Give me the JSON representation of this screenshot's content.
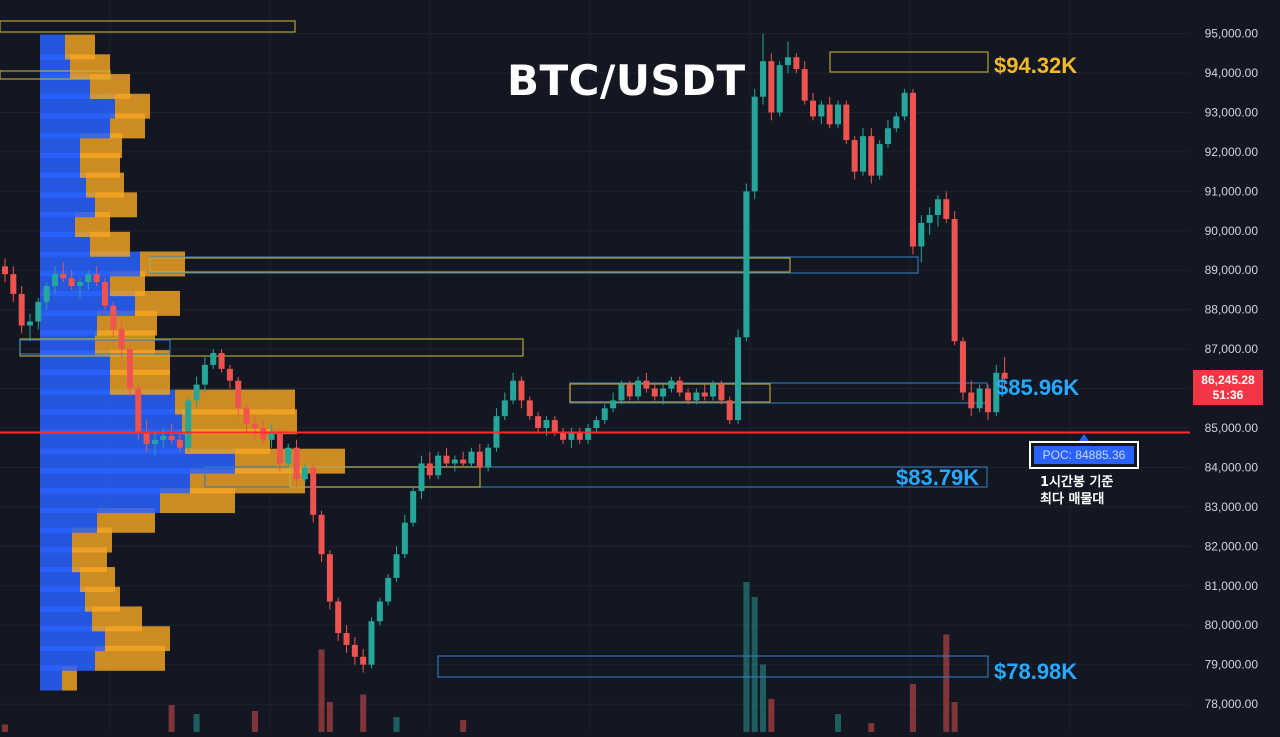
{
  "title": "BTC/USDT",
  "colors": {
    "background": "#131722",
    "grid": "#1e2230",
    "up": "#26a69a",
    "down": "#ef5350",
    "vp_blue": "#2962ff",
    "vp_orange": "#f5a623",
    "poc_line": "#ff2b2b",
    "zone_yellow": "#c9b13a",
    "zone_blue": "#3a7bbf",
    "label_gold": "#f5b82a",
    "label_blue": "#26a9ff"
  },
  "axis": {
    "y_ticks": [
      "95,000.00",
      "94,000.00",
      "93,000.00",
      "92,000.00",
      "91,000.00",
      "90,000.00",
      "89,000.00",
      "88,000.00",
      "87,000.00",
      "86,000.00",
      "85,000.00",
      "84,000.00",
      "83,000.00",
      "82,000.00",
      "81,000.00",
      "80,000.00",
      "79,000.00",
      "78,000.00"
    ]
  },
  "current_price": {
    "value": "86,245.28",
    "countdown": "51:36"
  },
  "poc": {
    "label": "POC: 84885.36",
    "value": 84885.36,
    "note_line1": "1시간봉 기준",
    "note_line2": "최다 매물대"
  },
  "levels": [
    {
      "label": "$94.32K",
      "value": 94320,
      "color": "gold"
    },
    {
      "label": "$85.96K",
      "value": 85960,
      "color": "blue"
    },
    {
      "label": "$83.79K",
      "value": 83790,
      "color": "blue"
    },
    {
      "label": "$78.98K",
      "value": 78980,
      "color": "blue"
    }
  ],
  "chart_data": {
    "type": "candlestick",
    "title": "BTC/USDT",
    "ylim": [
      77500,
      95500
    ],
    "ohlc": [
      [
        89100,
        89300,
        88700,
        88900
      ],
      [
        88900,
        89100,
        88200,
        88400
      ],
      [
        88400,
        88600,
        87400,
        87600
      ],
      [
        87600,
        87900,
        87200,
        87700
      ],
      [
        87700,
        88300,
        87500,
        88200
      ],
      [
        88200,
        88700,
        88000,
        88600
      ],
      [
        88600,
        89100,
        88400,
        88900
      ],
      [
        88900,
        89200,
        88700,
        88800
      ],
      [
        88800,
        89000,
        88500,
        88600
      ],
      [
        88600,
        88800,
        88300,
        88700
      ],
      [
        88700,
        89000,
        88500,
        88900
      ],
      [
        88900,
        89100,
        88600,
        88700
      ],
      [
        88700,
        88800,
        88000,
        88100
      ],
      [
        88100,
        88200,
        87300,
        87500
      ],
      [
        87500,
        87700,
        86800,
        87000
      ],
      [
        87000,
        87100,
        85800,
        86000
      ],
      [
        86000,
        86100,
        84700,
        84900
      ],
      [
        84900,
        85200,
        84400,
        84600
      ],
      [
        84600,
        84900,
        84300,
        84700
      ],
      [
        84700,
        85000,
        84500,
        84800
      ],
      [
        84800,
        85100,
        84600,
        84700
      ],
      [
        84700,
        84900,
        84400,
        84500
      ],
      [
        84500,
        85800,
        84400,
        85700
      ],
      [
        85700,
        86300,
        85500,
        86100
      ],
      [
        86100,
        86800,
        85900,
        86600
      ],
      [
        86600,
        87000,
        86500,
        86900
      ],
      [
        86900,
        87000,
        86400,
        86500
      ],
      [
        86500,
        86600,
        86000,
        86200
      ],
      [
        86200,
        86300,
        85300,
        85500
      ],
      [
        85500,
        85600,
        84900,
        85100
      ],
      [
        85100,
        85300,
        84700,
        85000
      ],
      [
        85000,
        85200,
        84600,
        84700
      ],
      [
        84700,
        85100,
        84500,
        84900
      ],
      [
        84900,
        85000,
        83900,
        84100
      ],
      [
        84100,
        84600,
        84000,
        84500
      ],
      [
        84500,
        84700,
        83500,
        83700
      ],
      [
        83700,
        84100,
        83600,
        84000
      ],
      [
        84000,
        84100,
        82600,
        82800
      ],
      [
        82800,
        82900,
        81600,
        81800
      ],
      [
        81800,
        81900,
        80400,
        80600
      ],
      [
        80600,
        80700,
        79600,
        79800
      ],
      [
        79800,
        80000,
        79300,
        79500
      ],
      [
        79500,
        79700,
        79000,
        79200
      ],
      [
        79200,
        79400,
        78800,
        79000
      ],
      [
        79000,
        80200,
        78900,
        80100
      ],
      [
        80100,
        80700,
        80000,
        80600
      ],
      [
        80600,
        81300,
        80500,
        81200
      ],
      [
        81200,
        82000,
        81100,
        81800
      ],
      [
        81800,
        82800,
        81700,
        82600
      ],
      [
        82600,
        83500,
        82500,
        83400
      ],
      [
        83400,
        84300,
        83200,
        84100
      ],
      [
        84100,
        84400,
        83700,
        83800
      ],
      [
        83800,
        84400,
        83700,
        84300
      ],
      [
        84300,
        84500,
        84000,
        84100
      ],
      [
        84100,
        84300,
        83900,
        84200
      ],
      [
        84200,
        84400,
        84000,
        84100
      ],
      [
        84100,
        84500,
        84000,
        84400
      ],
      [
        84400,
        84600,
        83900,
        84000
      ],
      [
        84000,
        84600,
        83900,
        84500
      ],
      [
        84500,
        85500,
        84400,
        85300
      ],
      [
        85300,
        85900,
        85200,
        85700
      ],
      [
        85700,
        86400,
        85600,
        86200
      ],
      [
        86200,
        86300,
        85500,
        85700
      ],
      [
        85700,
        85800,
        85200,
        85300
      ],
      [
        85300,
        85400,
        84900,
        85000
      ],
      [
        85000,
        85300,
        84800,
        85200
      ],
      [
        85200,
        85300,
        84800,
        84900
      ],
      [
        84900,
        85000,
        84600,
        84700
      ],
      [
        84700,
        85000,
        84500,
        84900
      ],
      [
        84900,
        85000,
        84600,
        84700
      ],
      [
        84700,
        85100,
        84600,
        85000
      ],
      [
        85000,
        85300,
        84900,
        85200
      ],
      [
        85200,
        85600,
        85100,
        85500
      ],
      [
        85500,
        85900,
        85400,
        85700
      ],
      [
        85700,
        86200,
        85600,
        86100
      ],
      [
        86100,
        86200,
        85700,
        85800
      ],
      [
        85800,
        86300,
        85700,
        86200
      ],
      [
        86200,
        86400,
        85900,
        86000
      ],
      [
        86000,
        86100,
        85700,
        85800
      ],
      [
        85800,
        86100,
        85600,
        86000
      ],
      [
        86000,
        86300,
        85900,
        86200
      ],
      [
        86200,
        86300,
        85800,
        85900
      ],
      [
        85900,
        86000,
        85600,
        85700
      ],
      [
        85700,
        86000,
        85600,
        85900
      ],
      [
        85900,
        86100,
        85700,
        85800
      ],
      [
        85800,
        86200,
        85700,
        86100
      ],
      [
        86100,
        86200,
        85600,
        85700
      ],
      [
        85700,
        85800,
        85100,
        85200
      ],
      [
        85200,
        87500,
        85100,
        87300
      ],
      [
        87300,
        91200,
        87200,
        91000
      ],
      [
        91000,
        93600,
        90800,
        93400
      ],
      [
        93400,
        95000,
        93200,
        94300
      ],
      [
        94300,
        94500,
        92800,
        93000
      ],
      [
        93000,
        94300,
        92900,
        94200
      ],
      [
        94200,
        94800,
        94000,
        94400
      ],
      [
        94400,
        94500,
        94000,
        94100
      ],
      [
        94100,
        94300,
        93200,
        93300
      ],
      [
        93300,
        93500,
        92800,
        92900
      ],
      [
        92900,
        93300,
        92700,
        93200
      ],
      [
        93200,
        93400,
        92600,
        92700
      ],
      [
        92700,
        93300,
        92600,
        93200
      ],
      [
        93200,
        93300,
        92200,
        92300
      ],
      [
        92300,
        92400,
        91300,
        91500
      ],
      [
        91500,
        92600,
        91400,
        92400
      ],
      [
        92400,
        92600,
        91200,
        91400
      ],
      [
        91400,
        92300,
        91300,
        92200
      ],
      [
        92200,
        92800,
        92100,
        92600
      ],
      [
        92600,
        93000,
        92500,
        92900
      ],
      [
        92900,
        93600,
        92800,
        93500
      ],
      [
        93500,
        93600,
        89400,
        89600
      ],
      [
        89600,
        90400,
        89200,
        90200
      ],
      [
        90200,
        90600,
        89900,
        90400
      ],
      [
        90400,
        90900,
        90100,
        90800
      ],
      [
        90800,
        91000,
        90200,
        90300
      ],
      [
        90300,
        90500,
        87100,
        87200
      ],
      [
        87200,
        87300,
        85700,
        85900
      ],
      [
        85900,
        86200,
        85300,
        85500
      ],
      [
        85500,
        86100,
        85400,
        86000
      ],
      [
        86000,
        86100,
        85200,
        85400
      ],
      [
        85400,
        86600,
        85300,
        86400
      ],
      [
        86400,
        86800,
        86000,
        86250
      ]
    ],
    "volume_profile": {
      "bins_low_to_high": [
        78500,
        79000,
        79500,
        80000,
        80500,
        81000,
        81500,
        82000,
        82500,
        83000,
        83500,
        84000,
        84500,
        85000,
        85500,
        86000,
        86500,
        87000,
        87500,
        88000,
        88500,
        89000,
        89500,
        90000,
        90500,
        91000,
        91500,
        92000,
        92500,
        93000,
        93500,
        94000,
        94500
      ],
      "buy": [
        22,
        55,
        65,
        52,
        45,
        40,
        32,
        32,
        57,
        120,
        150,
        195,
        145,
        142,
        135,
        70,
        70,
        55,
        57,
        95,
        70,
        100,
        50,
        35,
        55,
        46,
        40,
        40,
        70,
        75,
        50,
        30,
        25
      ],
      "sell": [
        15,
        70,
        65,
        50,
        35,
        35,
        35,
        40,
        58,
        75,
        115,
        110,
        85,
        115,
        120,
        60,
        60,
        60,
        60,
        45,
        35,
        45,
        40,
        35,
        42,
        38,
        40,
        42,
        35,
        35,
        40,
        40,
        30
      ]
    },
    "volume_bars": [
      {
        "i": 0,
        "v": 0.05
      },
      {
        "i": 20,
        "v": 0.18
      },
      {
        "i": 23,
        "v": 0.12
      },
      {
        "i": 30,
        "v": 0.14
      },
      {
        "i": 38,
        "v": 0.55
      },
      {
        "i": 39,
        "v": 0.2
      },
      {
        "i": 43,
        "v": 0.25
      },
      {
        "i": 47,
        "v": 0.1
      },
      {
        "i": 55,
        "v": 0.08
      },
      {
        "i": 89,
        "v": 1.0
      },
      {
        "i": 90,
        "v": 0.9
      },
      {
        "i": 91,
        "v": 0.45
      },
      {
        "i": 92,
        "v": 0.22
      },
      {
        "i": 100,
        "v": 0.12
      },
      {
        "i": 104,
        "v": 0.06
      },
      {
        "i": 109,
        "v": 0.32
      },
      {
        "i": 113,
        "v": 0.65
      },
      {
        "i": 114,
        "v": 0.2
      }
    ]
  }
}
